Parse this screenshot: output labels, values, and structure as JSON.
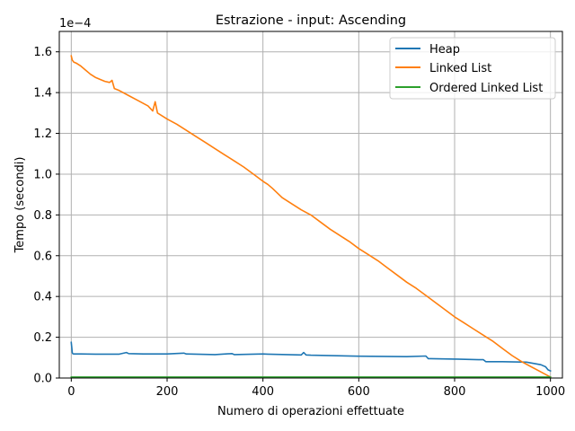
{
  "chart_data": {
    "type": "line",
    "title": "Estrazione - input: Ascending",
    "xlabel": "Numero di operazioni effettuate",
    "ylabel": "Tempo (secondi)",
    "y_scale_label": "1e−4",
    "xlim": [
      -25,
      1025
    ],
    "ylim": [
      0,
      1.7
    ],
    "x_ticks": [
      0,
      200,
      400,
      600,
      800,
      1000
    ],
    "y_ticks": [
      0.0,
      0.2,
      0.4,
      0.6,
      0.8,
      1.0,
      1.2,
      1.4,
      1.6
    ],
    "x_tick_labels": [
      "0",
      "200",
      "400",
      "600",
      "800",
      "1000"
    ],
    "y_tick_labels": [
      "0.0",
      "0.2",
      "0.4",
      "0.6",
      "0.8",
      "1.0",
      "1.2",
      "1.4",
      "1.6"
    ],
    "grid": true,
    "legend_position": "top-right",
    "series": [
      {
        "name": "Heap",
        "color": "#1f77b4",
        "x": [
          0,
          1,
          2,
          3,
          5,
          10,
          20,
          50,
          100,
          115,
          120,
          150,
          200,
          235,
          240,
          300,
          335,
          340,
          400,
          410,
          480,
          485,
          490,
          500,
          600,
          700,
          740,
          745,
          750,
          800,
          850,
          860,
          865,
          900,
          950,
          980,
          990,
          995,
          1000
        ],
        "values": [
          0.175,
          0.15,
          0.125,
          0.12,
          0.118,
          0.118,
          0.118,
          0.117,
          0.117,
          0.125,
          0.12,
          0.118,
          0.118,
          0.122,
          0.118,
          0.115,
          0.12,
          0.115,
          0.118,
          0.117,
          0.113,
          0.125,
          0.113,
          0.112,
          0.107,
          0.105,
          0.108,
          0.095,
          0.095,
          0.093,
          0.09,
          0.09,
          0.08,
          0.08,
          0.078,
          0.065,
          0.055,
          0.04,
          0.035
        ]
      },
      {
        "name": "Linked List",
        "color": "#ff7f0e",
        "x": [
          0,
          2,
          5,
          10,
          20,
          30,
          40,
          50,
          60,
          70,
          80,
          85,
          90,
          100,
          120,
          140,
          160,
          170,
          175,
          180,
          200,
          220,
          240,
          260,
          280,
          300,
          320,
          340,
          360,
          380,
          400,
          410,
          420,
          440,
          460,
          480,
          500,
          520,
          540,
          560,
          580,
          600,
          620,
          640,
          660,
          680,
          700,
          720,
          740,
          760,
          780,
          800,
          820,
          840,
          860,
          870,
          880,
          900,
          920,
          940,
          960,
          980,
          1000
        ],
        "values": [
          1.58,
          1.56,
          1.55,
          1.545,
          1.53,
          1.51,
          1.49,
          1.475,
          1.465,
          1.455,
          1.45,
          1.46,
          1.42,
          1.41,
          1.385,
          1.36,
          1.335,
          1.31,
          1.355,
          1.3,
          1.27,
          1.245,
          1.215,
          1.185,
          1.155,
          1.125,
          1.095,
          1.065,
          1.035,
          1.0,
          0.965,
          0.95,
          0.93,
          0.885,
          0.855,
          0.825,
          0.8,
          0.765,
          0.73,
          0.7,
          0.67,
          0.635,
          0.605,
          0.575,
          0.54,
          0.505,
          0.47,
          0.44,
          0.405,
          0.37,
          0.335,
          0.3,
          0.27,
          0.24,
          0.21,
          0.195,
          0.18,
          0.145,
          0.11,
          0.08,
          0.055,
          0.03,
          0.005
        ]
      },
      {
        "name": "Ordered Linked List",
        "color": "#2ca02c",
        "x": [
          0,
          1000
        ],
        "values": [
          0.005,
          0.005
        ]
      }
    ]
  }
}
